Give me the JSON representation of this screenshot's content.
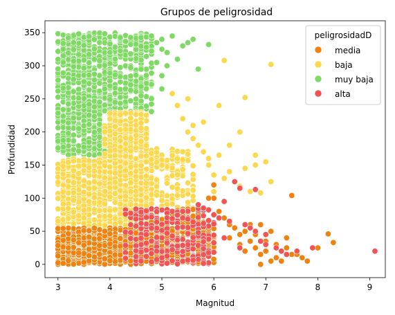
{
  "chart_data": {
    "type": "scatter",
    "title": "Grupos de peligrosidad",
    "xlabel": "Magnitud",
    "ylabel": "Profundidad",
    "xlim": [
      2.75,
      9.3
    ],
    "ylim": [
      -20,
      368
    ],
    "xticks": [
      3,
      4,
      5,
      6,
      7,
      8,
      9
    ],
    "yticks": [
      0,
      50,
      100,
      150,
      200,
      250,
      300,
      350
    ],
    "grid": false,
    "legend": {
      "title": "peligrosidadD",
      "placement": "top-right"
    },
    "series": [
      {
        "name": "media",
        "color": "#f0830f",
        "dense_regions": [
          {
            "x": [
              3.0,
              4.3
            ],
            "y": [
              0,
              55
            ],
            "count": 520
          },
          {
            "x": [
              4.3,
              6.0
            ],
            "y": [
              0,
              55
            ],
            "count": 380
          },
          {
            "x": [
              4.8,
              5.8
            ],
            "y": [
              55,
              85
            ],
            "count": 60
          }
        ],
        "points": [
          [
            6.0,
            100
          ],
          [
            6.1,
            80
          ],
          [
            6.2,
            70
          ],
          [
            6.3,
            60
          ],
          [
            6.3,
            40
          ],
          [
            6.4,
            55
          ],
          [
            6.5,
            45
          ],
          [
            6.5,
            30
          ],
          [
            6.6,
            50
          ],
          [
            6.6,
            20
          ],
          [
            6.7,
            35
          ],
          [
            6.7,
            60
          ],
          [
            6.8,
            25
          ],
          [
            6.8,
            45
          ],
          [
            6.9,
            15
          ],
          [
            6.9,
            60
          ],
          [
            7.0,
            20
          ],
          [
            7.0,
            35
          ],
          [
            7.1,
            50
          ],
          [
            7.2,
            10
          ],
          [
            7.2,
            30
          ],
          [
            7.3,
            5
          ],
          [
            7.3,
            20
          ],
          [
            7.4,
            25
          ],
          [
            7.5,
            104
          ],
          [
            7.5,
            15
          ],
          [
            7.6,
            20
          ],
          [
            7.7,
            10
          ],
          [
            7.8,
            5
          ],
          [
            7.9,
            25
          ],
          [
            8.0,
            25
          ],
          [
            8.2,
            46
          ],
          [
            8.3,
            33
          ],
          [
            7.6,
            15
          ],
          [
            7.4,
            40
          ],
          [
            6.2,
            95
          ],
          [
            6.0,
            120
          ],
          [
            5.9,
            100
          ],
          [
            7.1,
            5
          ],
          [
            6.9,
            0
          ]
        ]
      },
      {
        "name": "baja",
        "color": "#fbd84e",
        "dense_regions": [
          {
            "x": [
              3.0,
              4.7
            ],
            "y": [
              55,
              160
            ],
            "count": 720
          },
          {
            "x": [
              3.9,
              4.7
            ],
            "y": [
              160,
              230
            ],
            "count": 240
          },
          {
            "x": [
              4.7,
              5.6
            ],
            "y": [
              85,
              175
            ],
            "count": 160
          }
        ],
        "points": [
          [
            5.5,
            250
          ],
          [
            5.2,
            258
          ],
          [
            5.3,
            240
          ],
          [
            5.4,
            220
          ],
          [
            5.5,
            200
          ],
          [
            5.6,
            190
          ],
          [
            5.7,
            180
          ],
          [
            5.8,
            170
          ],
          [
            5.9,
            150
          ],
          [
            6.0,
            135
          ],
          [
            6.1,
            240
          ],
          [
            6.1,
            165
          ],
          [
            6.2,
            308
          ],
          [
            6.2,
            130
          ],
          [
            6.3,
            180
          ],
          [
            6.4,
            125
          ],
          [
            6.5,
            118
          ],
          [
            6.6,
            252
          ],
          [
            6.6,
            145
          ],
          [
            6.7,
            110
          ],
          [
            6.8,
            165
          ],
          [
            6.9,
            108
          ],
          [
            7.0,
            155
          ],
          [
            7.1,
            302
          ],
          [
            7.1,
            125
          ],
          [
            5.6,
            210
          ],
          [
            5.8,
            215
          ],
          [
            5.9,
            160
          ],
          [
            6.0,
            110
          ],
          [
            6.3,
            140
          ],
          [
            6.5,
            200
          ],
          [
            6.8,
            150
          ]
        ]
      },
      {
        "name": "muy baja",
        "color": "#7fd964",
        "dense_regions": [
          {
            "x": [
              3.0,
              3.9
            ],
            "y": [
              165,
              350
            ],
            "count": 620
          },
          {
            "x": [
              3.9,
              4.8
            ],
            "y": [
              230,
              350
            ],
            "count": 300
          }
        ],
        "points": [
          [
            4.8,
            345
          ],
          [
            4.9,
            335
          ],
          [
            5.0,
            325
          ],
          [
            5.1,
            320
          ],
          [
            5.2,
            345
          ],
          [
            5.3,
            310
          ],
          [
            5.4,
            330
          ],
          [
            5.5,
            335
          ],
          [
            5.6,
            340
          ],
          [
            5.7,
            295
          ],
          [
            5.9,
            332
          ],
          [
            5.0,
            285
          ],
          [
            5.0,
            265
          ],
          [
            5.1,
            300
          ],
          [
            4.9,
            305
          ],
          [
            5.0,
            340
          ]
        ]
      },
      {
        "name": "alta",
        "color": "#f25353",
        "dense_regions": [
          {
            "x": [
              4.3,
              6.0
            ],
            "y": [
              0,
              85
            ],
            "count": 230
          }
        ],
        "points": [
          [
            5.7,
            90
          ],
          [
            5.8,
            85
          ],
          [
            6.0,
            75
          ],
          [
            6.1,
            70
          ],
          [
            6.2,
            95
          ],
          [
            6.3,
            65
          ],
          [
            6.4,
            125
          ],
          [
            6.5,
            115
          ],
          [
            6.6,
            60
          ],
          [
            6.7,
            55
          ],
          [
            6.8,
            113
          ],
          [
            6.8,
            50
          ],
          [
            7.0,
            45
          ],
          [
            7.0,
            30
          ],
          [
            7.2,
            25
          ],
          [
            7.3,
            20
          ],
          [
            7.4,
            15
          ],
          [
            7.6,
            20
          ],
          [
            7.9,
            25
          ],
          [
            9.1,
            20
          ],
          [
            6.9,
            35
          ],
          [
            6.2,
            40
          ],
          [
            6.5,
            25
          ]
        ]
      }
    ]
  }
}
